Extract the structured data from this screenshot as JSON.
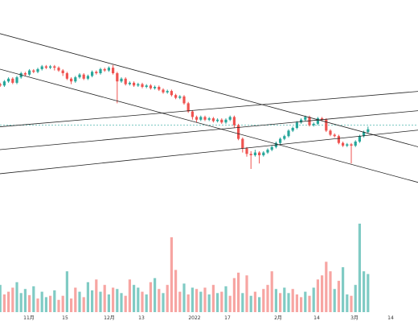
{
  "chart_data": {
    "type": "candlestick",
    "title": "",
    "x_tick_labels": [
      "11月",
      "15",
      "12月",
      "13",
      "2022",
      "17",
      "2月",
      "14",
      "3月",
      "14"
    ],
    "price_range": [
      0,
      100
    ],
    "volume_range": [
      0,
      130
    ],
    "grid": false,
    "candles": [
      {
        "o": 60,
        "c": 62,
        "h": 63,
        "l": 59
      },
      {
        "o": 62,
        "c": 61,
        "h": 63,
        "l": 60
      },
      {
        "o": 61,
        "c": 64,
        "h": 65,
        "l": 60
      },
      {
        "o": 64,
        "c": 66,
        "h": 67,
        "l": 63
      },
      {
        "o": 66,
        "c": 63,
        "h": 67,
        "l": 62
      },
      {
        "o": 63,
        "c": 67,
        "h": 68,
        "l": 62
      },
      {
        "o": 67,
        "c": 70,
        "h": 71,
        "l": 66
      },
      {
        "o": 70,
        "c": 69,
        "h": 71,
        "l": 68
      },
      {
        "o": 69,
        "c": 72,
        "h": 73,
        "l": 68
      },
      {
        "o": 72,
        "c": 71,
        "h": 73,
        "l": 70
      },
      {
        "o": 71,
        "c": 73,
        "h": 74,
        "l": 70
      },
      {
        "o": 73,
        "c": 75,
        "h": 76,
        "l": 72
      },
      {
        "o": 75,
        "c": 74,
        "h": 76,
        "l": 73
      },
      {
        "o": 74,
        "c": 75,
        "h": 76,
        "l": 73
      },
      {
        "o": 75,
        "c": 74,
        "h": 76,
        "l": 72
      },
      {
        "o": 74,
        "c": 72,
        "h": 75,
        "l": 71
      },
      {
        "o": 72,
        "c": 70,
        "h": 73,
        "l": 68
      },
      {
        "o": 70,
        "c": 66,
        "h": 71,
        "l": 65
      },
      {
        "o": 66,
        "c": 64,
        "h": 67,
        "l": 62
      },
      {
        "o": 64,
        "c": 67,
        "h": 68,
        "l": 63
      },
      {
        "o": 67,
        "c": 69,
        "h": 70,
        "l": 66
      },
      {
        "o": 69,
        "c": 66,
        "h": 70,
        "l": 65
      },
      {
        "o": 66,
        "c": 68,
        "h": 69,
        "l": 65
      },
      {
        "o": 68,
        "c": 71,
        "h": 72,
        "l": 67
      },
      {
        "o": 71,
        "c": 70,
        "h": 72,
        "l": 69
      },
      {
        "o": 70,
        "c": 73,
        "h": 74,
        "l": 69
      },
      {
        "o": 73,
        "c": 72,
        "h": 74,
        "l": 71
      },
      {
        "o": 72,
        "c": 74,
        "h": 75,
        "l": 71
      },
      {
        "o": 74,
        "c": 70,
        "h": 76,
        "l": 69
      },
      {
        "o": 70,
        "c": 64,
        "h": 71,
        "l": 48
      },
      {
        "o": 64,
        "c": 66,
        "h": 67,
        "l": 63
      },
      {
        "o": 66,
        "c": 62,
        "h": 67,
        "l": 61
      },
      {
        "o": 62,
        "c": 63,
        "h": 64,
        "l": 61
      },
      {
        "o": 63,
        "c": 61,
        "h": 64,
        "l": 60
      },
      {
        "o": 61,
        "c": 62,
        "h": 63,
        "l": 60
      },
      {
        "o": 62,
        "c": 60,
        "h": 63,
        "l": 59
      },
      {
        "o": 60,
        "c": 61,
        "h": 62,
        "l": 59
      },
      {
        "o": 61,
        "c": 59,
        "h": 62,
        "l": 58
      },
      {
        "o": 59,
        "c": 60,
        "h": 61,
        "l": 58
      },
      {
        "o": 60,
        "c": 58,
        "h": 61,
        "l": 57
      },
      {
        "o": 58,
        "c": 56,
        "h": 59,
        "l": 55
      },
      {
        "o": 56,
        "c": 57,
        "h": 58,
        "l": 55
      },
      {
        "o": 57,
        "c": 54,
        "h": 58,
        "l": 53
      },
      {
        "o": 54,
        "c": 52,
        "h": 55,
        "l": 51
      },
      {
        "o": 52,
        "c": 53,
        "h": 54,
        "l": 51
      },
      {
        "o": 53,
        "c": 48,
        "h": 54,
        "l": 47
      },
      {
        "o": 48,
        "c": 42,
        "h": 49,
        "l": 41
      },
      {
        "o": 42,
        "c": 38,
        "h": 43,
        "l": 36
      },
      {
        "o": 38,
        "c": 36,
        "h": 39,
        "l": 34
      },
      {
        "o": 36,
        "c": 38,
        "h": 39,
        "l": 35
      },
      {
        "o": 38,
        "c": 36,
        "h": 39,
        "l": 35
      },
      {
        "o": 36,
        "c": 37,
        "h": 38,
        "l": 35
      },
      {
        "o": 37,
        "c": 35,
        "h": 38,
        "l": 34
      },
      {
        "o": 35,
        "c": 36,
        "h": 37,
        "l": 34
      },
      {
        "o": 36,
        "c": 34,
        "h": 37,
        "l": 33
      },
      {
        "o": 34,
        "c": 36,
        "h": 37,
        "l": 33
      },
      {
        "o": 36,
        "c": 38,
        "h": 39,
        "l": 35
      },
      {
        "o": 38,
        "c": 32,
        "h": 39,
        "l": 30
      },
      {
        "o": 32,
        "c": 22,
        "h": 33,
        "l": 21
      },
      {
        "o": 22,
        "c": 15,
        "h": 23,
        "l": 12
      },
      {
        "o": 15,
        "c": 11,
        "h": 16,
        "l": 9
      },
      {
        "o": 11,
        "c": 10,
        "h": 13,
        "l": 0
      },
      {
        "o": 10,
        "c": 12,
        "h": 14,
        "l": 9
      },
      {
        "o": 12,
        "c": 10,
        "h": 13,
        "l": 4
      },
      {
        "o": 10,
        "c": 12,
        "h": 13,
        "l": 9
      },
      {
        "o": 12,
        "c": 14,
        "h": 15,
        "l": 11
      },
      {
        "o": 14,
        "c": 16,
        "h": 17,
        "l": 13
      },
      {
        "o": 16,
        "c": 19,
        "h": 20,
        "l": 15
      },
      {
        "o": 19,
        "c": 22,
        "h": 23,
        "l": 18
      },
      {
        "o": 22,
        "c": 24,
        "h": 25,
        "l": 21
      },
      {
        "o": 24,
        "c": 28,
        "h": 29,
        "l": 23
      },
      {
        "o": 28,
        "c": 30,
        "h": 31,
        "l": 27
      },
      {
        "o": 30,
        "c": 34,
        "h": 35,
        "l": 29
      },
      {
        "o": 34,
        "c": 36,
        "h": 37,
        "l": 33
      },
      {
        "o": 36,
        "c": 38,
        "h": 39,
        "l": 35
      },
      {
        "o": 38,
        "c": 32,
        "h": 39,
        "l": 31
      },
      {
        "o": 32,
        "c": 33,
        "h": 34,
        "l": 31
      },
      {
        "o": 33,
        "c": 37,
        "h": 38,
        "l": 32
      },
      {
        "o": 37,
        "c": 36,
        "h": 38,
        "l": 35
      },
      {
        "o": 36,
        "c": 28,
        "h": 37,
        "l": 27
      },
      {
        "o": 28,
        "c": 25,
        "h": 29,
        "l": 24
      },
      {
        "o": 25,
        "c": 24,
        "h": 26,
        "l": 23
      },
      {
        "o": 24,
        "c": 19,
        "h": 25,
        "l": 18
      },
      {
        "o": 19,
        "c": 17,
        "h": 20,
        "l": 16
      },
      {
        "o": 17,
        "c": 18,
        "h": 19,
        "l": 16
      },
      {
        "o": 18,
        "c": 17,
        "h": 19,
        "l": 4
      },
      {
        "o": 17,
        "c": 20,
        "h": 21,
        "l": 16
      },
      {
        "o": 20,
        "c": 24,
        "h": 25,
        "l": 19
      },
      {
        "o": 24,
        "c": 27,
        "h": 28,
        "l": 23
      },
      {
        "o": 27,
        "c": 29,
        "h": 31,
        "l": 26
      }
    ],
    "volumes": [
      {
        "v": 28,
        "d": "down"
      },
      {
        "v": 40,
        "d": "up"
      },
      {
        "v": 26,
        "d": "down"
      },
      {
        "v": 30,
        "d": "down"
      },
      {
        "v": 36,
        "d": "down"
      },
      {
        "v": 44,
        "d": "up"
      },
      {
        "v": 28,
        "d": "up"
      },
      {
        "v": 34,
        "d": "up"
      },
      {
        "v": 25,
        "d": "down"
      },
      {
        "v": 38,
        "d": "up"
      },
      {
        "v": 20,
        "d": "down"
      },
      {
        "v": 30,
        "d": "up"
      },
      {
        "v": 22,
        "d": "up"
      },
      {
        "v": 24,
        "d": "down"
      },
      {
        "v": 32,
        "d": "up"
      },
      {
        "v": 18,
        "d": "down"
      },
      {
        "v": 24,
        "d": "down"
      },
      {
        "v": 60,
        "d": "up"
      },
      {
        "v": 20,
        "d": "down"
      },
      {
        "v": 36,
        "d": "down"
      },
      {
        "v": 30,
        "d": "up"
      },
      {
        "v": 22,
        "d": "down"
      },
      {
        "v": 44,
        "d": "up"
      },
      {
        "v": 32,
        "d": "up"
      },
      {
        "v": 48,
        "d": "down"
      },
      {
        "v": 30,
        "d": "up"
      },
      {
        "v": 40,
        "d": "down"
      },
      {
        "v": 26,
        "d": "up"
      },
      {
        "v": 36,
        "d": "down"
      },
      {
        "v": 34,
        "d": "up"
      },
      {
        "v": 28,
        "d": "up"
      },
      {
        "v": 24,
        "d": "down"
      },
      {
        "v": 48,
        "d": "down"
      },
      {
        "v": 40,
        "d": "up"
      },
      {
        "v": 36,
        "d": "up"
      },
      {
        "v": 30,
        "d": "down"
      },
      {
        "v": 26,
        "d": "up"
      },
      {
        "v": 44,
        "d": "down"
      },
      {
        "v": 50,
        "d": "up"
      },
      {
        "v": 34,
        "d": "down"
      },
      {
        "v": 28,
        "d": "up"
      },
      {
        "v": 40,
        "d": "down"
      },
      {
        "v": 110,
        "d": "down"
      },
      {
        "v": 62,
        "d": "down"
      },
      {
        "v": 30,
        "d": "down"
      },
      {
        "v": 42,
        "d": "up"
      },
      {
        "v": 26,
        "d": "down"
      },
      {
        "v": 36,
        "d": "up"
      },
      {
        "v": 34,
        "d": "down"
      },
      {
        "v": 30,
        "d": "up"
      },
      {
        "v": 36,
        "d": "down"
      },
      {
        "v": 26,
        "d": "up"
      },
      {
        "v": 40,
        "d": "down"
      },
      {
        "v": 28,
        "d": "up"
      },
      {
        "v": 30,
        "d": "down"
      },
      {
        "v": 38,
        "d": "up"
      },
      {
        "v": 24,
        "d": "down"
      },
      {
        "v": 50,
        "d": "down"
      },
      {
        "v": 58,
        "d": "down"
      },
      {
        "v": 28,
        "d": "up"
      },
      {
        "v": 54,
        "d": "down"
      },
      {
        "v": 24,
        "d": "up"
      },
      {
        "v": 30,
        "d": "down"
      },
      {
        "v": 22,
        "d": "up"
      },
      {
        "v": 34,
        "d": "down"
      },
      {
        "v": 40,
        "d": "down"
      },
      {
        "v": 60,
        "d": "down"
      },
      {
        "v": 34,
        "d": "up"
      },
      {
        "v": 28,
        "d": "down"
      },
      {
        "v": 36,
        "d": "up"
      },
      {
        "v": 28,
        "d": "up"
      },
      {
        "v": 34,
        "d": "down"
      },
      {
        "v": 26,
        "d": "down"
      },
      {
        "v": 22,
        "d": "down"
      },
      {
        "v": 30,
        "d": "up"
      },
      {
        "v": 24,
        "d": "down"
      },
      {
        "v": 36,
        "d": "up"
      },
      {
        "v": 48,
        "d": "down"
      },
      {
        "v": 54,
        "d": "down"
      },
      {
        "v": 74,
        "d": "down"
      },
      {
        "v": 60,
        "d": "down"
      },
      {
        "v": 34,
        "d": "up"
      },
      {
        "v": 46,
        "d": "down"
      },
      {
        "v": 66,
        "d": "up"
      },
      {
        "v": 26,
        "d": "up"
      },
      {
        "v": 24,
        "d": "down"
      },
      {
        "v": 40,
        "d": "up"
      },
      {
        "v": 130,
        "d": "up"
      },
      {
        "v": 60,
        "d": "up"
      },
      {
        "v": 56,
        "d": "up"
      }
    ],
    "trend_lines": [
      {
        "from": [
          -10,
          108
        ],
        "to": [
          106,
          12
        ]
      },
      {
        "from": [
          -10,
          82
        ],
        "to": [
          106,
          -14
        ]
      },
      {
        "from": [
          -10,
          28
        ],
        "to": [
          106,
          58
        ]
      },
      {
        "from": [
          -10,
          11
        ],
        "to": [
          106,
          44
        ]
      },
      {
        "from": [
          -10,
          -7
        ],
        "to": [
          106,
          30
        ]
      }
    ],
    "reference_line": {
      "value": 32
    },
    "colors": {
      "up": "#26a69a",
      "down": "#ef5350",
      "volume_up": "#80cbc4",
      "volume_down": "#f7a5a2",
      "reference": "#26a69a",
      "trend": "#222222",
      "axis_text": "#333333"
    }
  }
}
